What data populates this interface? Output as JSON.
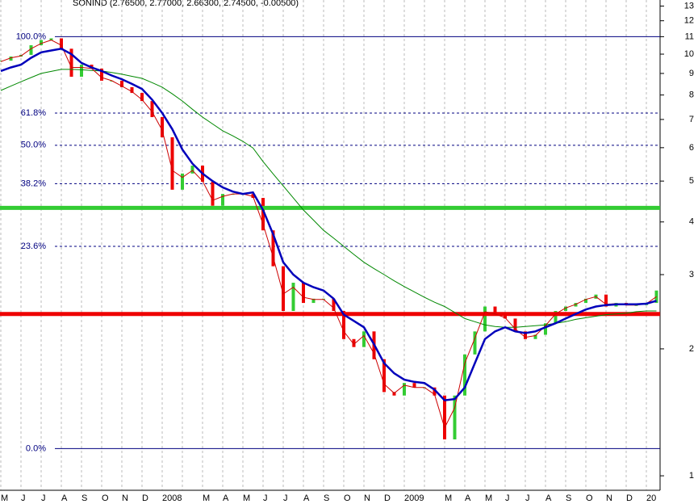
{
  "chart_data": {
    "type": "stock",
    "title": "SONIND (2.76500, 2.77000, 2.66300, 2.74500, -0.00500)",
    "categories": [
      "M",
      "J",
      "J",
      "A",
      "S",
      "O",
      "N",
      "D",
      "2008",
      null,
      "M",
      "A",
      "M",
      "J",
      "J",
      "A",
      "S",
      "O",
      "N",
      "D",
      "2009",
      null,
      "M",
      "A",
      "M",
      "J",
      "J",
      "A",
      "S",
      "O",
      "N",
      "D",
      "20"
    ],
    "x": [
      0,
      0.5,
      1,
      1.5,
      2,
      2.5,
      3,
      3.5,
      4,
      4.5,
      5,
      5.5,
      6,
      6.5,
      7,
      7.5,
      8,
      8.5,
      9,
      9.5,
      10,
      10.5,
      11,
      11.5,
      12,
      12.5,
      13,
      13.5,
      14,
      14.5,
      15,
      15.5,
      16,
      16.5,
      17,
      17.5,
      18,
      18.5,
      19,
      19.5,
      20,
      20.5,
      21,
      21.5,
      22,
      22.5,
      23,
      23.5,
      24,
      24.5,
      25,
      25.5,
      26,
      26.5,
      27,
      27.5,
      28,
      28.5,
      29,
      29.5,
      30,
      30.5,
      31,
      31.5,
      32,
      32.5
    ],
    "xlim": [
      -0.04,
      32.68
    ],
    "ylim": [
      0.924,
      13.44
    ],
    "yticks": [
      1,
      2,
      3,
      4,
      5,
      6,
      7,
      8,
      9,
      10,
      11,
      12,
      13
    ],
    "log_scale": true,
    "grid": true,
    "series": [
      {
        "type": "bar",
        "up_color": "#33cc33",
        "down_color": "#ee0000",
        "width": 4,
        "values": [
          9.65,
          9.87,
          9.96,
          10.5,
          10.8,
          10.9,
          10.3,
          8.84,
          9.44,
          9.24,
          8.65,
          8.65,
          8.35,
          8.09,
          7.74,
          7.09,
          6.35,
          4.77,
          5.21,
          5.44,
          4.98,
          4.37,
          4.66,
          4.66,
          4.66,
          4.56,
          3.82,
          3.14,
          2.46,
          2.87,
          2.57,
          2.63,
          2.63,
          2.46,
          2.11,
          2.02,
          2.2,
          1.89,
          1.58,
          1.55,
          1.66,
          1.62,
          1.62,
          1.55,
          1.22,
          1.55,
          1.94,
          2.2,
          2.52,
          2.41,
          2.36,
          2.2,
          2.11,
          2.16,
          2.3,
          2.46,
          2.52,
          2.57,
          2.63,
          2.69,
          2.52,
          2.57,
          2.54,
          2.54,
          2.57,
          2.75
        ]
      },
      {
        "type": "line",
        "color": "#008800",
        "width": 1,
        "values": [
          8.2,
          8.4,
          8.6,
          8.8,
          9.0,
          9.1,
          9.2,
          9.2,
          9.18,
          9.15,
          9.12,
          9.05,
          8.96,
          8.86,
          8.76,
          8.56,
          8.35,
          8.05,
          7.74,
          7.4,
          7.09,
          6.83,
          6.58,
          6.4,
          6.21,
          5.99,
          5.56,
          5.2,
          4.87,
          4.56,
          4.27,
          4.04,
          3.82,
          3.66,
          3.5,
          3.35,
          3.21,
          3.1,
          3.0,
          2.9,
          2.81,
          2.73,
          2.65,
          2.58,
          2.52,
          2.44,
          2.36,
          2.32,
          2.28,
          2.26,
          2.25,
          2.25,
          2.26,
          2.27,
          2.28,
          2.3,
          2.32,
          2.35,
          2.37,
          2.39,
          2.41,
          2.42,
          2.43,
          2.45,
          2.46,
          2.46
        ]
      },
      {
        "type": "line",
        "color": "#cc0000",
        "width": 1,
        "values": [
          9.6,
          9.8,
          9.9,
          10.3,
          10.6,
          10.8,
          10.5,
          9.3,
          9.3,
          9.25,
          8.8,
          8.65,
          8.4,
          8.15,
          7.8,
          7.3,
          6.6,
          5.3,
          5.1,
          5.3,
          5.0,
          4.5,
          4.6,
          4.66,
          4.66,
          4.6,
          3.95,
          3.3,
          2.7,
          2.8,
          2.65,
          2.62,
          2.62,
          2.5,
          2.2,
          2.05,
          2.15,
          1.95,
          1.65,
          1.57,
          1.64,
          1.62,
          1.62,
          1.56,
          1.3,
          1.45,
          1.85,
          2.12,
          2.45,
          2.42,
          2.37,
          2.23,
          2.13,
          2.15,
          2.27,
          2.42,
          2.5,
          2.55,
          2.62,
          2.66,
          2.55,
          2.56,
          2.54,
          2.54,
          2.56,
          2.66
        ]
      },
      {
        "type": "line",
        "color": "#0000bb",
        "width": 2.5,
        "values": [
          9.12,
          9.3,
          9.44,
          9.8,
          10.1,
          10.2,
          10.3,
          10.0,
          9.53,
          9.3,
          9.12,
          8.9,
          8.72,
          8.5,
          8.27,
          7.8,
          7.25,
          6.64,
          5.94,
          5.5,
          5.21,
          5.0,
          4.83,
          4.72,
          4.66,
          4.7,
          4.27,
          3.74,
          3.21,
          3.0,
          2.87,
          2.8,
          2.75,
          2.63,
          2.41,
          2.33,
          2.25,
          2.05,
          1.85,
          1.75,
          1.69,
          1.67,
          1.66,
          1.6,
          1.51,
          1.52,
          1.62,
          1.85,
          2.11,
          2.2,
          2.25,
          2.2,
          2.18,
          2.2,
          2.25,
          2.3,
          2.36,
          2.42,
          2.48,
          2.52,
          2.54,
          2.55,
          2.55,
          2.55,
          2.56,
          2.6
        ]
      }
    ],
    "levels": [
      {
        "label": "100.0%",
        "value": 11.0,
        "dashed": false
      },
      {
        "label": "61.8%",
        "value": 7.25,
        "dashed": true
      },
      {
        "label": "50.0%",
        "value": 6.08,
        "dashed": true
      },
      {
        "label": "38.2%",
        "value": 4.93,
        "dashed": true
      },
      {
        "label": "23.6%",
        "value": 3.5,
        "dashed": true
      },
      {
        "label": "0.0%",
        "value": 1.16,
        "dashed": false
      }
    ],
    "level_color": "#000080",
    "support_lines": [
      {
        "value": 4.32,
        "color": "#33cc33"
      },
      {
        "value": 2.42,
        "color": "#ee0000"
      }
    ]
  }
}
